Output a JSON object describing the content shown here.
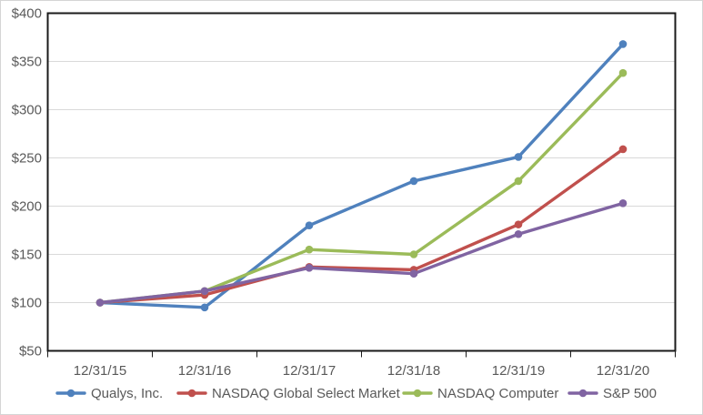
{
  "chart_data": {
    "type": "line",
    "title": "",
    "categories": [
      "12/31/15",
      "12/31/16",
      "12/31/17",
      "12/31/18",
      "12/31/19",
      "12/31/20"
    ],
    "series": [
      {
        "name": "Qualys, Inc.",
        "color": "#4F81BD",
        "marker": "circle",
        "values": [
          100,
          95,
          180,
          226,
          251,
          368
        ]
      },
      {
        "name": "NASDAQ Global Select Market",
        "color": "#C0504D",
        "marker": "circle",
        "values": [
          100,
          108,
          137,
          134,
          181,
          259
        ]
      },
      {
        "name": "NASDAQ Computer",
        "color": "#9BBB59",
        "marker": "circle",
        "values": [
          100,
          112,
          155,
          150,
          226,
          338
        ]
      },
      {
        "name": "S&P 500",
        "color": "#8064A2",
        "marker": "circle",
        "values": [
          100,
          112,
          136,
          130,
          171,
          203
        ]
      }
    ],
    "xlabel": "",
    "ylabel": "",
    "y_axis": {
      "min": 50,
      "max": 400,
      "step": 50,
      "format": "currency"
    },
    "y_tick_labels": [
      "$50",
      "$100",
      "$150",
      "$200",
      "$250",
      "$300",
      "$350",
      "$400"
    ],
    "grid": true,
    "legend_position": "bottom"
  },
  "style_colors": {
    "axis_text": "#595959",
    "gridline": "#D9D9D9",
    "plot_border": "#1a1a1a",
    "background": "#ffffff"
  }
}
